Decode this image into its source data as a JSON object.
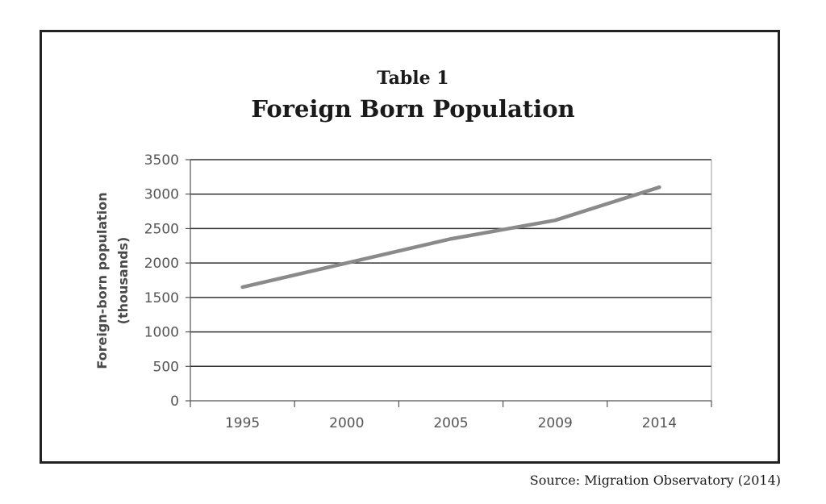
{
  "figure": {
    "table_label": "Table 1",
    "source": "Source: Migration Observatory (2014)"
  },
  "chart_data": {
    "type": "line",
    "title": "Foreign Born Population",
    "xlabel": "",
    "ylabel": [
      "Foreign-born population",
      "(thousands)"
    ],
    "categories": [
      "1995",
      "2000",
      "2005",
      "2009",
      "2014"
    ],
    "values": [
      1650,
      2000,
      2350,
      2620,
      3100
    ],
    "ylim": [
      0,
      3500
    ],
    "yticks": [
      0,
      500,
      1000,
      1500,
      2000,
      2500,
      3000,
      3500
    ],
    "grid": true,
    "line_color": "#8a8a8a",
    "grid_color": "#333333"
  }
}
